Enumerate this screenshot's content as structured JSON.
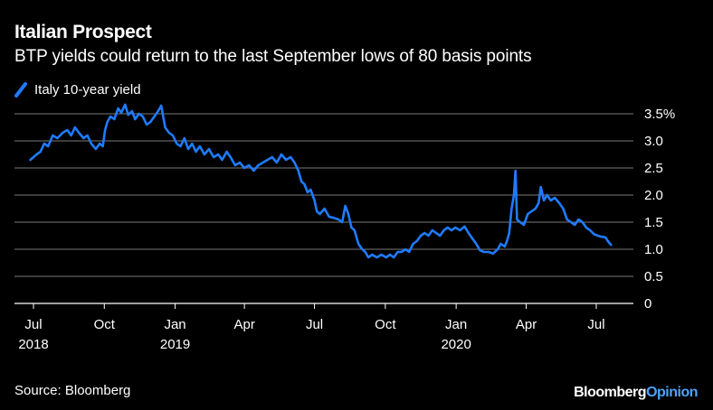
{
  "title": "Italian Prospect",
  "subtitle": "BTP yields could return to the last September lows of 80 basis points",
  "source": "Source: Bloomberg",
  "brand": {
    "part1": "Bloomberg",
    "part2": "Opinion"
  },
  "colors": {
    "series": "#1f7bff",
    "grid": "#7a7a7a",
    "axis": "#ffffff",
    "brand_accent": "#4da3ff"
  },
  "chart_data": {
    "type": "line",
    "xlabel": "",
    "ylabel": "",
    "ylim": [
      0,
      3.5
    ],
    "y_ticks": [
      {
        "value": 3.5,
        "label": "3.5%"
      },
      {
        "value": 3.0,
        "label": "3.0"
      },
      {
        "value": 2.5,
        "label": "2.5"
      },
      {
        "value": 2.0,
        "label": "2.0"
      },
      {
        "value": 1.5,
        "label": "1.5"
      },
      {
        "value": 1.0,
        "label": "1.0"
      },
      {
        "value": 0.5,
        "label": "0.5"
      },
      {
        "value": 0,
        "label": "0"
      }
    ],
    "x_ticks": [
      {
        "date": "2018-07-01",
        "label": "Jul",
        "year": "2018"
      },
      {
        "date": "2018-10-01",
        "label": "Oct",
        "year": ""
      },
      {
        "date": "2019-01-01",
        "label": "Jan",
        "year": "2019"
      },
      {
        "date": "2019-04-01",
        "label": "Apr",
        "year": ""
      },
      {
        "date": "2019-07-01",
        "label": "Jul",
        "year": ""
      },
      {
        "date": "2019-10-01",
        "label": "Oct",
        "year": ""
      },
      {
        "date": "2020-01-01",
        "label": "Jan",
        "year": "2020"
      },
      {
        "date": "2020-04-01",
        "label": "Apr",
        "year": ""
      },
      {
        "date": "2020-07-01",
        "label": "Jul",
        "year": ""
      }
    ],
    "grid": true,
    "legend_position": "top-left",
    "series": [
      {
        "name": "Italy 10-year yield",
        "color": "#1f7bff",
        "points": [
          [
            "2018-06-27",
            2.65
          ],
          [
            "2018-07-05",
            2.75
          ],
          [
            "2018-07-10",
            2.8
          ],
          [
            "2018-07-15",
            2.95
          ],
          [
            "2018-07-20",
            2.9
          ],
          [
            "2018-07-26",
            3.1
          ],
          [
            "2018-08-01",
            3.05
          ],
          [
            "2018-08-08",
            3.15
          ],
          [
            "2018-08-14",
            3.2
          ],
          [
            "2018-08-19",
            3.1
          ],
          [
            "2018-08-24",
            3.25
          ],
          [
            "2018-08-29",
            3.15
          ],
          [
            "2018-09-04",
            3.05
          ],
          [
            "2018-09-09",
            3.1
          ],
          [
            "2018-09-14",
            2.95
          ],
          [
            "2018-09-20",
            2.85
          ],
          [
            "2018-09-25",
            2.95
          ],
          [
            "2018-09-29",
            2.9
          ],
          [
            "2018-10-02",
            3.2
          ],
          [
            "2018-10-05",
            3.35
          ],
          [
            "2018-10-09",
            3.45
          ],
          [
            "2018-10-14",
            3.4
          ],
          [
            "2018-10-19",
            3.6
          ],
          [
            "2018-10-23",
            3.52
          ],
          [
            "2018-10-28",
            3.67
          ],
          [
            "2018-11-01",
            3.48
          ],
          [
            "2018-11-06",
            3.55
          ],
          [
            "2018-11-10",
            3.4
          ],
          [
            "2018-11-15",
            3.5
          ],
          [
            "2018-11-20",
            3.45
          ],
          [
            "2018-11-25",
            3.3
          ],
          [
            "2018-11-30",
            3.35
          ],
          [
            "2018-12-05",
            3.45
          ],
          [
            "2018-12-10",
            3.55
          ],
          [
            "2018-12-14",
            3.65
          ],
          [
            "2018-12-19",
            3.25
          ],
          [
            "2018-12-24",
            3.15
          ],
          [
            "2018-12-29",
            3.1
          ],
          [
            "2019-01-03",
            2.95
          ],
          [
            "2019-01-08",
            2.9
          ],
          [
            "2019-01-13",
            3.05
          ],
          [
            "2019-01-18",
            2.85
          ],
          [
            "2019-01-23",
            2.95
          ],
          [
            "2019-01-28",
            2.8
          ],
          [
            "2019-02-02",
            2.9
          ],
          [
            "2019-02-08",
            2.75
          ],
          [
            "2019-02-14",
            2.85
          ],
          [
            "2019-02-20",
            2.7
          ],
          [
            "2019-02-26",
            2.75
          ],
          [
            "2019-03-03",
            2.65
          ],
          [
            "2019-03-09",
            2.8
          ],
          [
            "2019-03-14",
            2.7
          ],
          [
            "2019-03-20",
            2.55
          ],
          [
            "2019-03-26",
            2.6
          ],
          [
            "2019-04-01",
            2.5
          ],
          [
            "2019-04-07",
            2.55
          ],
          [
            "2019-04-13",
            2.45
          ],
          [
            "2019-04-19",
            2.55
          ],
          [
            "2019-04-25",
            2.6
          ],
          [
            "2019-05-01",
            2.65
          ],
          [
            "2019-05-07",
            2.7
          ],
          [
            "2019-05-13",
            2.6
          ],
          [
            "2019-05-19",
            2.75
          ],
          [
            "2019-05-25",
            2.65
          ],
          [
            "2019-05-31",
            2.7
          ],
          [
            "2019-06-05",
            2.6
          ],
          [
            "2019-06-10",
            2.45
          ],
          [
            "2019-06-14",
            2.25
          ],
          [
            "2019-06-18",
            2.2
          ],
          [
            "2019-06-22",
            2.05
          ],
          [
            "2019-06-26",
            2.1
          ],
          [
            "2019-07-01",
            1.9
          ],
          [
            "2019-07-04",
            1.7
          ],
          [
            "2019-07-08",
            1.65
          ],
          [
            "2019-07-14",
            1.75
          ],
          [
            "2019-07-20",
            1.6
          ],
          [
            "2019-07-26",
            1.58
          ],
          [
            "2019-08-01",
            1.55
          ],
          [
            "2019-08-06",
            1.5
          ],
          [
            "2019-08-10",
            1.8
          ],
          [
            "2019-08-14",
            1.65
          ],
          [
            "2019-08-18",
            1.4
          ],
          [
            "2019-08-22",
            1.35
          ],
          [
            "2019-08-27",
            1.1
          ],
          [
            "2019-09-01",
            1.0
          ],
          [
            "2019-09-05",
            0.95
          ],
          [
            "2019-09-09",
            0.85
          ],
          [
            "2019-09-14",
            0.9
          ],
          [
            "2019-09-20",
            0.85
          ],
          [
            "2019-09-26",
            0.9
          ],
          [
            "2019-10-02",
            0.85
          ],
          [
            "2019-10-07",
            0.9
          ],
          [
            "2019-10-12",
            0.85
          ],
          [
            "2019-10-17",
            0.95
          ],
          [
            "2019-10-22",
            0.95
          ],
          [
            "2019-10-27",
            1.0
          ],
          [
            "2019-11-01",
            0.95
          ],
          [
            "2019-11-06",
            1.1
          ],
          [
            "2019-11-11",
            1.15
          ],
          [
            "2019-11-16",
            1.25
          ],
          [
            "2019-11-21",
            1.3
          ],
          [
            "2019-11-26",
            1.25
          ],
          [
            "2019-12-01",
            1.35
          ],
          [
            "2019-12-06",
            1.3
          ],
          [
            "2019-12-11",
            1.25
          ],
          [
            "2019-12-16",
            1.35
          ],
          [
            "2019-12-21",
            1.4
          ],
          [
            "2019-12-26",
            1.35
          ],
          [
            "2019-12-31",
            1.4
          ],
          [
            "2020-01-06",
            1.35
          ],
          [
            "2020-01-12",
            1.42
          ],
          [
            "2020-01-17",
            1.3
          ],
          [
            "2020-01-22",
            1.2
          ],
          [
            "2020-01-27",
            1.1
          ],
          [
            "2020-02-01",
            0.98
          ],
          [
            "2020-02-06",
            0.95
          ],
          [
            "2020-02-12",
            0.95
          ],
          [
            "2020-02-18",
            0.92
          ],
          [
            "2020-02-24",
            1.0
          ],
          [
            "2020-02-28",
            1.1
          ],
          [
            "2020-03-04",
            1.05
          ],
          [
            "2020-03-07",
            1.15
          ],
          [
            "2020-03-10",
            1.3
          ],
          [
            "2020-03-13",
            1.75
          ],
          [
            "2020-03-16",
            2.0
          ],
          [
            "2020-03-18",
            2.45
          ],
          [
            "2020-03-20",
            1.55
          ],
          [
            "2020-03-24",
            1.5
          ],
          [
            "2020-03-29",
            1.45
          ],
          [
            "2020-04-03",
            1.65
          ],
          [
            "2020-04-08",
            1.7
          ],
          [
            "2020-04-13",
            1.75
          ],
          [
            "2020-04-17",
            1.85
          ],
          [
            "2020-04-20",
            2.15
          ],
          [
            "2020-04-24",
            1.9
          ],
          [
            "2020-04-28",
            2.0
          ],
          [
            "2020-05-03",
            1.9
          ],
          [
            "2020-05-08",
            1.95
          ],
          [
            "2020-05-14",
            1.85
          ],
          [
            "2020-05-19",
            1.75
          ],
          [
            "2020-05-24",
            1.55
          ],
          [
            "2020-05-29",
            1.5
          ],
          [
            "2020-06-03",
            1.45
          ],
          [
            "2020-06-08",
            1.55
          ],
          [
            "2020-06-13",
            1.5
          ],
          [
            "2020-06-18",
            1.4
          ],
          [
            "2020-06-23",
            1.35
          ],
          [
            "2020-06-28",
            1.28
          ],
          [
            "2020-07-03",
            1.25
          ],
          [
            "2020-07-08",
            1.23
          ],
          [
            "2020-07-13",
            1.22
          ],
          [
            "2020-07-16",
            1.15
          ],
          [
            "2020-07-20",
            1.08
          ]
        ]
      }
    ]
  }
}
